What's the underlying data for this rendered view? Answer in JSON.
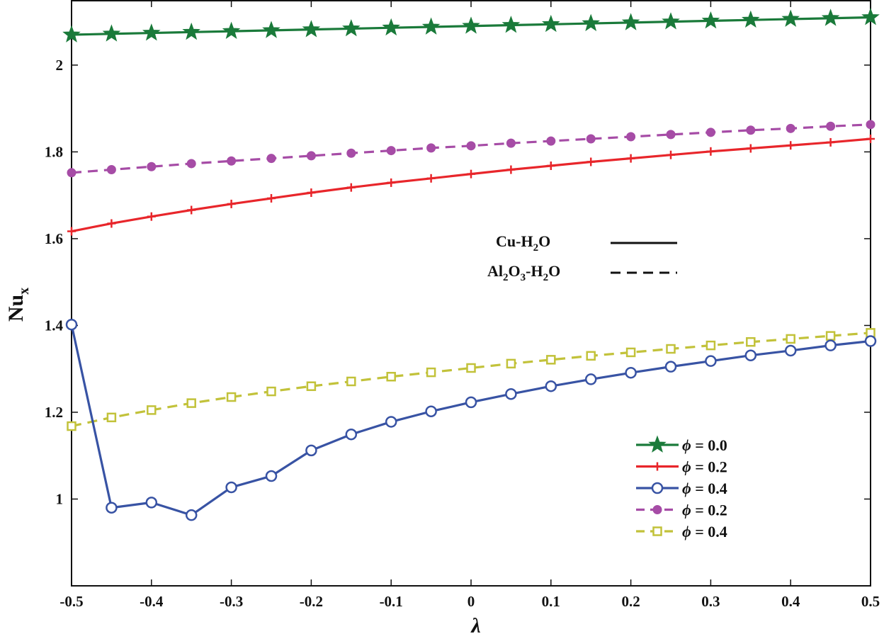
{
  "chart_data": {
    "type": "line",
    "title": "",
    "xlabel": "λ",
    "ylabel_main": "Nu",
    "ylabel_sub": "x",
    "xlim": [
      -0.5,
      0.5
    ],
    "ylim": [
      0.8,
      2.15
    ],
    "grid": false,
    "x_ticks": [
      -0.5,
      -0.4,
      -0.3,
      -0.2,
      -0.1,
      0,
      0.1,
      0.2,
      0.3,
      0.4,
      0.5
    ],
    "x_tick_labels": [
      "-0.5",
      "-0.4",
      "-0.3",
      "-0.2",
      "-0.1",
      "0",
      "0.1",
      "0.2",
      "0.3",
      "0.4",
      "0.5"
    ],
    "y_ticks": [
      1.0,
      1.2,
      1.4,
      1.6,
      1.8,
      2.0
    ],
    "y_tick_labels": [
      "1",
      "1.2",
      "1.4",
      "1.6",
      "1.8",
      "2"
    ],
    "x": [
      -0.5,
      -0.45,
      -0.4,
      -0.35,
      -0.3,
      -0.25,
      -0.2,
      -0.15,
      -0.1,
      -0.05,
      0,
      0.05,
      0.1,
      0.15,
      0.2,
      0.25,
      0.3,
      0.35,
      0.4,
      0.45,
      0.5
    ],
    "series": [
      {
        "name": "φ = 0.0",
        "phi": "0.0",
        "fluid": "Cu-H2O",
        "color": "#1a7a3a",
        "dash": "solid",
        "marker": "star",
        "values": [
          2.07,
          2.072,
          2.074,
          2.076,
          2.078,
          2.08,
          2.082,
          2.084,
          2.086,
          2.088,
          2.09,
          2.092,
          2.094,
          2.096,
          2.098,
          2.1,
          2.102,
          2.104,
          2.106,
          2.108,
          2.11
        ]
      },
      {
        "name": "φ = 0.2",
        "phi": "0.2",
        "fluid": "Cu-H2O",
        "color": "#e8262b",
        "dash": "solid",
        "marker": "plus",
        "values": [
          1.617,
          1.635,
          1.651,
          1.666,
          1.68,
          1.693,
          1.706,
          1.718,
          1.729,
          1.739,
          1.749,
          1.759,
          1.768,
          1.777,
          1.785,
          1.793,
          1.801,
          1.808,
          1.815,
          1.822,
          1.83
        ]
      },
      {
        "name": "φ = 0.4",
        "phi": "0.4",
        "fluid": "Cu-H2O",
        "color": "#3853a4",
        "dash": "solid",
        "marker": "circle-open",
        "values": [
          1.402,
          0.98,
          0.992,
          0.963,
          1.027,
          1.053,
          1.112,
          1.149,
          1.178,
          1.202,
          1.223,
          1.242,
          1.26,
          1.276,
          1.291,
          1.305,
          1.318,
          1.331,
          1.342,
          1.354,
          1.364
        ]
      },
      {
        "name": "φ = 0.2",
        "phi": "0.2",
        "fluid": "Al2O3-H2O",
        "color": "#a64ca6",
        "dash": "dashed",
        "marker": "circle-filled",
        "values": [
          1.752,
          1.759,
          1.766,
          1.773,
          1.779,
          1.785,
          1.791,
          1.797,
          1.803,
          1.809,
          1.814,
          1.82,
          1.825,
          1.83,
          1.835,
          1.84,
          1.845,
          1.85,
          1.854,
          1.859,
          1.863
        ]
      },
      {
        "name": "φ = 0.4",
        "phi": "0.4",
        "fluid": "Al2O3-H2O",
        "color": "#c2c23a",
        "dash": "dashed",
        "marker": "square-open",
        "values": [
          1.168,
          1.188,
          1.205,
          1.221,
          1.235,
          1.248,
          1.26,
          1.271,
          1.282,
          1.292,
          1.302,
          1.312,
          1.321,
          1.33,
          1.338,
          1.346,
          1.354,
          1.362,
          1.369,
          1.376,
          1.383
        ]
      }
    ],
    "style_legend": [
      {
        "main": "Cu-H",
        "sub1": "2",
        "main2": "O",
        "dash": "solid"
      },
      {
        "p1": "Al",
        "s1": "2",
        "p2": "O",
        "s2": "3",
        "p3": "-H",
        "s3": "2",
        "p4": "O",
        "dash": "dashed"
      }
    ],
    "legend_position": "bottom-right"
  }
}
